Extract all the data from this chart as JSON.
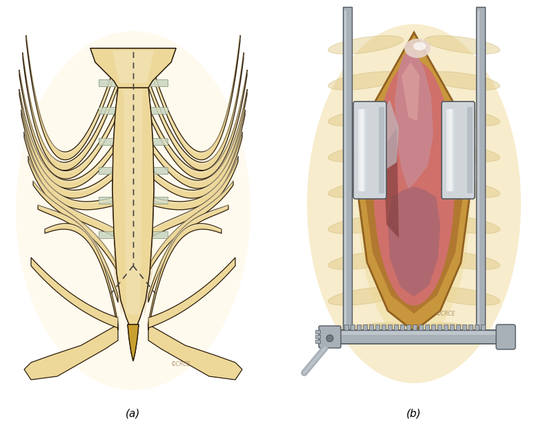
{
  "figsize": [
    8.0,
    6.17
  ],
  "dpi": 100,
  "bg": "#ffffff",
  "label_a": "(a)",
  "label_b": "(b)",
  "label_fs": 11,
  "bone_fill": "#EDD89A",
  "bone_light": "#F5EBC8",
  "bone_shadow": "#C8A860",
  "bone_dark": "#B8860B",
  "bone_outline": "#2a1a08",
  "cartilage_fill": "#C8D5C0",
  "cartilage_outline": "#8A9A80",
  "dash_color": "#444444",
  "glow_a": "#FFF8E8",
  "skin_color": "#E8C87A",
  "retractor_light": "#D0D5DA",
  "retractor_mid": "#A8B0B8",
  "retractor_dark": "#707880",
  "retractor_outline": "#505860",
  "organ_pink": "#C8848A",
  "organ_dark": "#9A5050",
  "organ_mid": "#B06870",
  "wound_outer": "#C8963C",
  "wound_mid": "#B07830",
  "wound_inner": "#804020",
  "tissue_bg": "#D0706A",
  "glow_b": "#F5E8C0",
  "xiphoid_color": "#C8A030"
}
